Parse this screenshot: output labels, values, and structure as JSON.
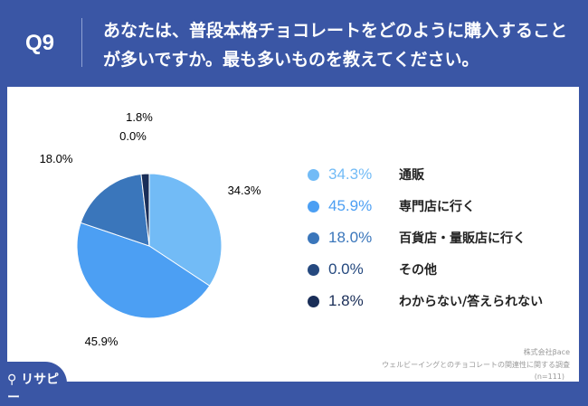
{
  "header": {
    "q": "Q9",
    "title": "あなたは、普段本格チョコレートをどのように購入することが多いですか。最も多いものを教えてください。"
  },
  "chart_data": {
    "type": "pie",
    "start": "top",
    "direction": "clockwise",
    "categories": [
      "通販",
      "専門店に行く",
      "百貨店・量販店に行く",
      "その他",
      "わからない/答えられない"
    ],
    "values": [
      34.3,
      45.9,
      18.0,
      0.0,
      1.8
    ],
    "labels": [
      "34.3%",
      "45.9%",
      "18.0%",
      "0.0%",
      "1.8%"
    ],
    "colors": [
      "#72bbf6",
      "#4c9ff3",
      "#3a76bb",
      "#25497f",
      "#1a2e58"
    ],
    "legend": "right"
  },
  "footer": {
    "company": "株式会社βace",
    "survey": "ウェルビーイングとのチョコレートの関連性に関する調査",
    "n": "(n=111)",
    "logo": "リサピー"
  }
}
